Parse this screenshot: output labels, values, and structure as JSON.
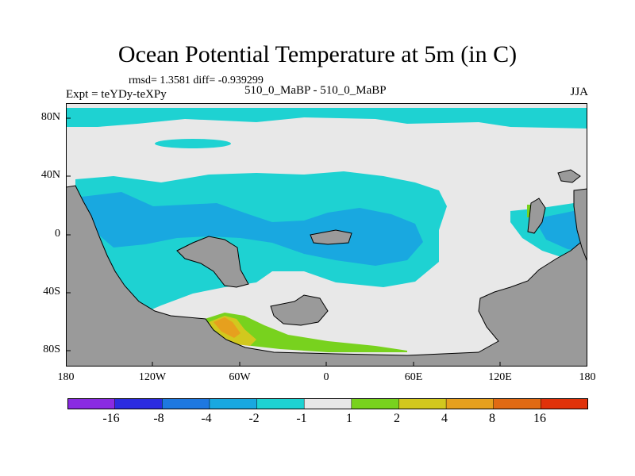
{
  "title": "Ocean Potential Temperature at 5m (in C)",
  "stats": "rmsd= 1.3581 diff= -0.939299",
  "experiment": "Expt = teYDy-teXPy",
  "subtitle": "510_0_MaBP - 510_0_MaBP",
  "season": "JJA",
  "y_ticks": [
    "80N",
    "40N",
    "0",
    "40S",
    "80S"
  ],
  "x_ticks": [
    "180",
    "120W",
    "60W",
    "0",
    "60E",
    "120E",
    "180"
  ],
  "colorbar": {
    "labels": [
      "-16",
      "-8",
      "-4",
      "-2",
      "-1",
      "1",
      "2",
      "4",
      "8",
      "16"
    ],
    "colors": [
      "#8a2be2",
      "#2c2ce0",
      "#1e78e0",
      "#19a8e0",
      "#1ed2d2",
      "#e8e8e8",
      "#78d21e",
      "#d2c81e",
      "#e6a01e",
      "#e06a14",
      "#e0320a"
    ]
  },
  "colors": {
    "land": "#9a9a9a",
    "neutral": "#e8e8e8",
    "cool1": "#1ed2d2",
    "cool2": "#19a8e0",
    "warm1": "#78d21e",
    "warm2": "#d2c81e",
    "warm3": "#e6a01e"
  }
}
